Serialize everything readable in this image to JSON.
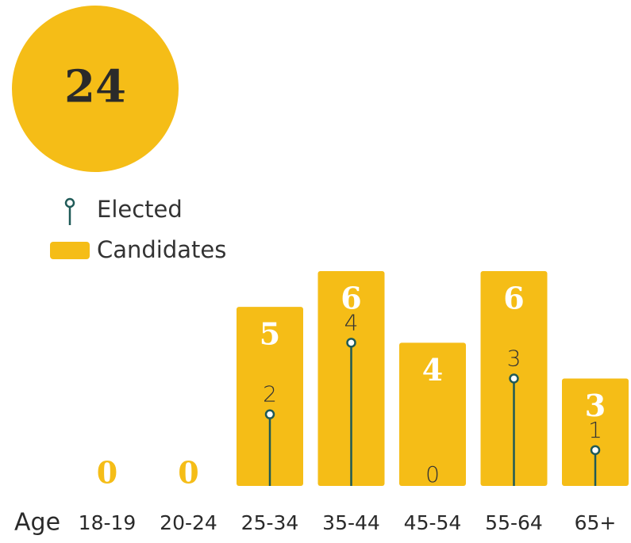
{
  "chart_data": {
    "type": "bar",
    "title": "24",
    "x_label": "Age",
    "categories": [
      "18-19",
      "20-24",
      "25-34",
      "35-44",
      "45-54",
      "55-64",
      "65+"
    ],
    "series": [
      {
        "name": "Candidates",
        "color": "#f5bd17",
        "values": [
          0,
          0,
          5,
          6,
          4,
          6,
          3
        ]
      },
      {
        "name": "Elected",
        "color": "#1f5a57",
        "values": [
          null,
          null,
          2,
          4,
          0,
          3,
          1
        ]
      }
    ],
    "ylim": [
      0,
      6
    ]
  }
}
